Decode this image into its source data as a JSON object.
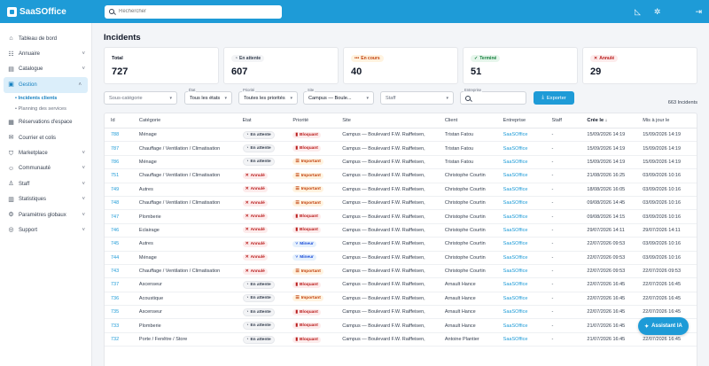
{
  "app": {
    "name": "SaaSOffice"
  },
  "search": {
    "placeholder": "Rechercher"
  },
  "sidebar": {
    "items": [
      {
        "label": "Tableau de bord",
        "icon": "home-icon",
        "chevron": false
      },
      {
        "label": "Annuaire",
        "icon": "contacts-icon",
        "chevron": true
      },
      {
        "label": "Catalogue",
        "icon": "catalog-icon",
        "chevron": true
      },
      {
        "label": "Gestion",
        "icon": "gestion-icon",
        "chevron": true,
        "active": true
      },
      {
        "label": "Réservations d'espace",
        "icon": "calendar-icon",
        "chevron": false
      },
      {
        "label": "Courrier et colis",
        "icon": "mail-icon",
        "chevron": false
      },
      {
        "label": "Marketplace",
        "icon": "shop-icon",
        "chevron": true
      },
      {
        "label": "Communauté",
        "icon": "community-icon",
        "chevron": true
      },
      {
        "label": "Staff",
        "icon": "staff-icon",
        "chevron": true
      },
      {
        "label": "Statistiques",
        "icon": "chart-icon",
        "chevron": true
      },
      {
        "label": "Paramètres globaux",
        "icon": "settings-icon",
        "chevron": true
      },
      {
        "label": "Support",
        "icon": "support-icon",
        "chevron": true
      }
    ],
    "subitems": [
      {
        "label": "• Incidents clients",
        "active": true
      },
      {
        "label": "• Planning des services",
        "active": false
      }
    ]
  },
  "page": {
    "title": "Incidents"
  },
  "stats": [
    {
      "label": "Total",
      "value": "727",
      "pill": false
    },
    {
      "label": "En attente",
      "value": "607",
      "pill": true,
      "glyph": "◔",
      "bg": "#f3f4f6",
      "fg": "#374151"
    },
    {
      "label": "En cours",
      "value": "40",
      "pill": true,
      "glyph": "•••",
      "bg": "#fff3e0",
      "fg": "#c2410c"
    },
    {
      "label": "Terminé",
      "value": "51",
      "pill": true,
      "glyph": "✓",
      "bg": "#e7f6ec",
      "fg": "#15803d"
    },
    {
      "label": "Annulé",
      "value": "29",
      "pill": true,
      "glyph": "✕",
      "bg": "#fdecec",
      "fg": "#b91c1c"
    }
  ],
  "filters": {
    "subcategory": "Sous-catégorie",
    "etat_label": "État",
    "etat": "Tous les états",
    "priorite_label": "Priorité",
    "priorite": "Toutes les priorités",
    "site_label": "Site",
    "site": "Campus — Boule...",
    "staff": "Staff",
    "entreprise_label": "Entreprise",
    "entreprise": "",
    "export": "Exporter",
    "count": "663 Incidents"
  },
  "table": {
    "headers": {
      "id": "Id",
      "categorie": "Catégorie",
      "etat": "État",
      "priorite": "Priorité",
      "site": "Site",
      "client": "Client",
      "entreprise": "Entreprise",
      "staff": "Staff",
      "cree": "Crée le",
      "maj": "Mis à jour le"
    },
    "rows": [
      {
        "id": "788",
        "cat": "Ménage",
        "etat": "En attente",
        "prio": "Bloquant",
        "site": "Campus — Boulevard F.W. Raiffeisen,",
        "client": "Tristan Fatou",
        "ent": "SaaSOffice",
        "staff": "-",
        "cree": "15/09/2026 14:19",
        "maj": "15/09/2026 14:19"
      },
      {
        "id": "787",
        "cat": "Chauffage / Ventilation / Climatisation",
        "etat": "En attente",
        "prio": "Bloquant",
        "site": "Campus — Boulevard F.W. Raiffeisen,",
        "client": "Tristan Fatou",
        "ent": "SaaSOffice",
        "staff": "-",
        "cree": "15/09/2026 14:19",
        "maj": "15/09/2026 14:19"
      },
      {
        "id": "786",
        "cat": "Ménage",
        "etat": "En attente",
        "prio": "Important",
        "site": "Campus — Boulevard F.W. Raiffeisen,",
        "client": "Tristan Fatou",
        "ent": "SaaSOffice",
        "staff": "-",
        "cree": "15/09/2026 14:19",
        "maj": "15/09/2026 14:19"
      },
      {
        "id": "751",
        "cat": "Chauffage / Ventilation / Climatisation",
        "etat": "Annulé",
        "prio": "Important",
        "site": "Campus — Boulevard F.W. Raiffeisen,",
        "client": "Christophe Courtin",
        "ent": "SaaSOffice",
        "staff": "-",
        "cree": "21/08/2026 16:25",
        "maj": "03/09/2026 10:16"
      },
      {
        "id": "749",
        "cat": "Autres",
        "etat": "Annulé",
        "prio": "Important",
        "site": "Campus — Boulevard F.W. Raiffeisen,",
        "client": "Christophe Courtin",
        "ent": "SaaSOffice",
        "staff": "-",
        "cree": "18/08/2026 16:05",
        "maj": "03/09/2026 10:16"
      },
      {
        "id": "748",
        "cat": "Chauffage / Ventilation / Climatisation",
        "etat": "Annulé",
        "prio": "Important",
        "site": "Campus — Boulevard F.W. Raiffeisen,",
        "client": "Christophe Courtin",
        "ent": "SaaSOffice",
        "staff": "-",
        "cree": "09/08/2026 14:45",
        "maj": "03/09/2026 10:16"
      },
      {
        "id": "747",
        "cat": "Plomberie",
        "etat": "Annulé",
        "prio": "Bloquant",
        "site": "Campus — Boulevard F.W. Raiffeisen,",
        "client": "Christophe Courtin",
        "ent": "SaaSOffice",
        "staff": "-",
        "cree": "09/08/2026 14:15",
        "maj": "03/09/2026 10:16"
      },
      {
        "id": "746",
        "cat": "Éclairage",
        "etat": "Annulé",
        "prio": "Bloquant",
        "site": "Campus — Boulevard F.W. Raiffeisen,",
        "client": "Christophe Courtin",
        "ent": "SaaSOffice",
        "staff": "-",
        "cree": "29/07/2026 14:11",
        "maj": "29/07/2026 14:11"
      },
      {
        "id": "745",
        "cat": "Autres",
        "etat": "Annulé",
        "prio": "Mineur",
        "site": "Campus — Boulevard F.W. Raiffeisen,",
        "client": "Christophe Courtin",
        "ent": "SaaSOffice",
        "staff": "-",
        "cree": "22/07/2026 09:53",
        "maj": "03/09/2026 10:16"
      },
      {
        "id": "744",
        "cat": "Ménage",
        "etat": "Annulé",
        "prio": "Mineur",
        "site": "Campus — Boulevard F.W. Raiffeisen,",
        "client": "Christophe Courtin",
        "ent": "SaaSOffice",
        "staff": "-",
        "cree": "22/07/2026 09:53",
        "maj": "03/09/2026 10:16"
      },
      {
        "id": "743",
        "cat": "Chauffage / Ventilation / Climatisation",
        "etat": "Annulé",
        "prio": "Important",
        "site": "Campus — Boulevard F.W. Raiffeisen,",
        "client": "Christophe Courtin",
        "ent": "SaaSOffice",
        "staff": "-",
        "cree": "22/07/2026 09:53",
        "maj": "22/07/2026 09:53"
      },
      {
        "id": "737",
        "cat": "Ascenseur",
        "etat": "En attente",
        "prio": "Bloquant",
        "site": "Campus — Boulevard F.W. Raiffeisen,",
        "client": "Arnault Hance",
        "ent": "SaaSOffice",
        "staff": "-",
        "cree": "22/07/2026 16:45",
        "maj": "22/07/2026 16:45"
      },
      {
        "id": "736",
        "cat": "Acoustique",
        "etat": "En attente",
        "prio": "Important",
        "site": "Campus — Boulevard F.W. Raiffeisen,",
        "client": "Arnault Hance",
        "ent": "SaaSOffice",
        "staff": "-",
        "cree": "22/07/2026 16:45",
        "maj": "22/07/2026 16:45"
      },
      {
        "id": "735",
        "cat": "Ascenseur",
        "etat": "En attente",
        "prio": "Bloquant",
        "site": "Campus — Boulevard F.W. Raiffeisen,",
        "client": "Arnault Hance",
        "ent": "SaaSOffice",
        "staff": "-",
        "cree": "22/07/2026 16:45",
        "maj": "22/07/2026 16:45"
      },
      {
        "id": "733",
        "cat": "Plomberie",
        "etat": "En attente",
        "prio": "Bloquant",
        "site": "Campus — Boulevard F.W. Raiffeisen,",
        "client": "Arnault Hance",
        "ent": "SaaSOffice",
        "staff": "-",
        "cree": "21/07/2026 16:45",
        "maj": "22/07/2026 16:45"
      },
      {
        "id": "732",
        "cat": "Porte / Fenêtre / Store",
        "etat": "En attente",
        "prio": "Bloquant",
        "site": "Campus — Boulevard F.W. Raiffeisen,",
        "client": "Antoine Plantier",
        "ent": "SaaSOffice",
        "staff": "-",
        "cree": "21/07/2026 16:45",
        "maj": "22/07/2026 16:45"
      }
    ]
  },
  "assistant": {
    "label": "Assistant IA"
  },
  "colors": {
    "brand": "#1e9bd7",
    "active_bg": "#dbeefa"
  }
}
